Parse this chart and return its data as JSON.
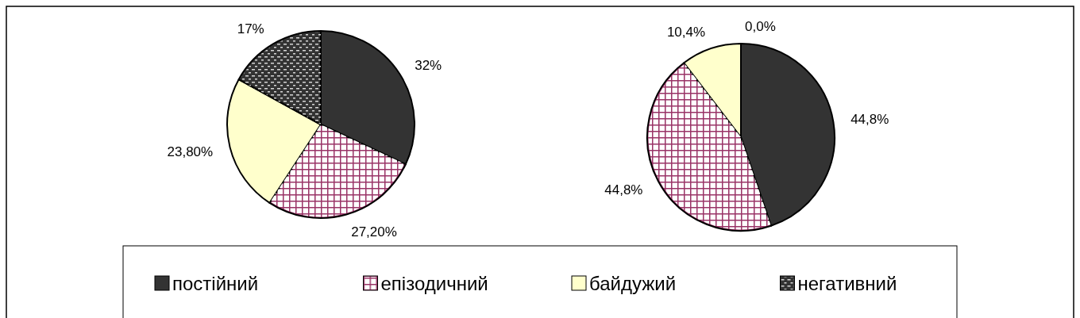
{
  "chart_data": [
    {
      "type": "pie",
      "categories": [
        "постійний",
        "епізодичний",
        "байдужий",
        "негативний"
      ],
      "values": [
        32,
        27.2,
        23.8,
        17
      ],
      "value_labels": [
        "32%",
        "27,20%",
        "23,80%",
        "17%"
      ],
      "colors": [
        "#333333",
        "#993366",
        "#ffffcc",
        "#333333"
      ],
      "legend": "bottom"
    },
    {
      "type": "pie",
      "categories": [
        null,
        null,
        null,
        null
      ],
      "values": [
        44.8,
        44.8,
        10.4,
        0.0
      ],
      "value_labels": [
        "44,8%",
        "44,8%",
        "10,4%",
        "0,0%"
      ],
      "colors": [
        "#333333",
        "#993366",
        "#ffffcc",
        "#333333"
      ]
    }
  ]
}
